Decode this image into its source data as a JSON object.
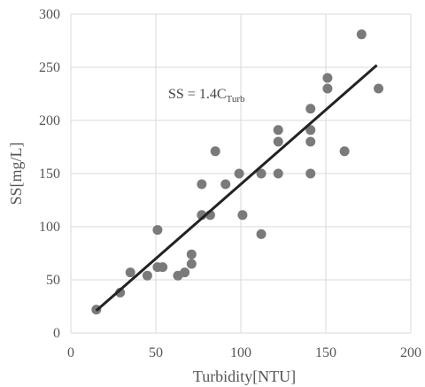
{
  "chart_data": {
    "type": "scatter",
    "title": "",
    "xlabel": "Turbidity[NTU]",
    "ylabel": "SS[mg/L]",
    "xlim": [
      0,
      200
    ],
    "ylim": [
      0,
      300
    ],
    "x_ticks": [
      "0",
      "50",
      "100",
      "150",
      "200"
    ],
    "y_ticks": [
      "0",
      "50",
      "100",
      "150",
      "200",
      "250",
      "300"
    ],
    "grid": true,
    "legend": "none",
    "annotation": {
      "main": "SS = 1.4C",
      "subscript": "Turb"
    },
    "point_color": "#7a7a7a",
    "line_color": "#222222",
    "trendline": {
      "slope": 1.4,
      "intercept": 0,
      "x_range": [
        15,
        180
      ]
    },
    "points": [
      [
        15,
        22
      ],
      [
        29,
        38
      ],
      [
        35,
        57
      ],
      [
        45,
        54
      ],
      [
        51,
        97
      ],
      [
        51,
        62
      ],
      [
        54,
        62
      ],
      [
        63,
        54
      ],
      [
        67,
        57
      ],
      [
        71,
        74
      ],
      [
        71,
        65
      ],
      [
        77,
        140
      ],
      [
        77,
        111
      ],
      [
        82,
        111
      ],
      [
        85,
        171
      ],
      [
        91,
        140
      ],
      [
        99,
        150
      ],
      [
        101,
        111
      ],
      [
        112,
        150
      ],
      [
        112,
        93
      ],
      [
        122,
        191
      ],
      [
        122,
        180
      ],
      [
        122,
        150
      ],
      [
        141,
        211
      ],
      [
        141,
        191
      ],
      [
        141,
        180
      ],
      [
        141,
        150
      ],
      [
        151,
        240
      ],
      [
        151,
        230
      ],
      [
        161,
        171
      ],
      [
        171,
        281
      ],
      [
        181,
        230
      ]
    ]
  }
}
